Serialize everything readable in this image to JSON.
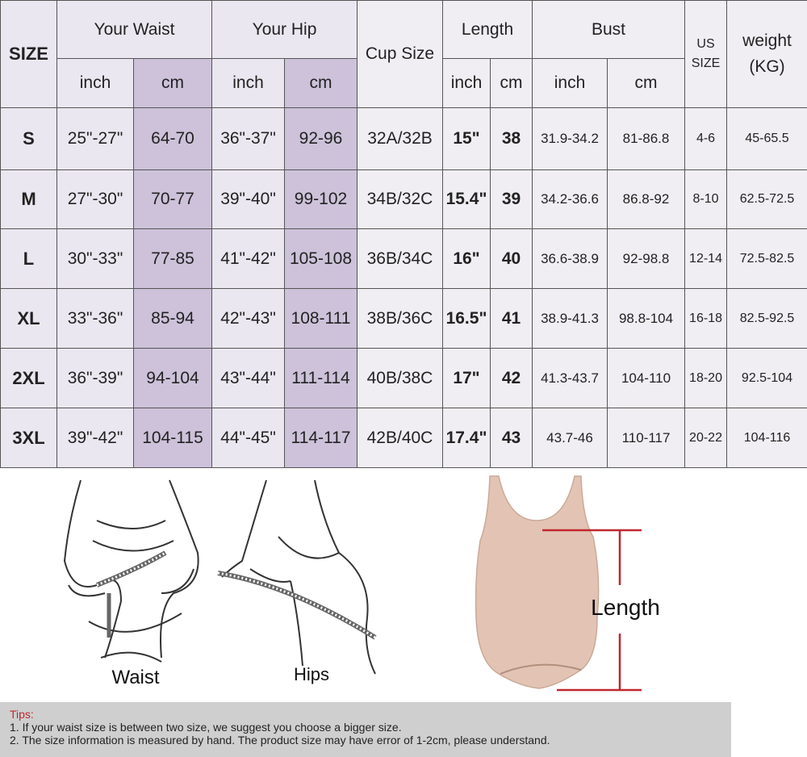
{
  "table": {
    "header": {
      "size": "SIZE",
      "waist": "Your Waist",
      "hip": "Your Hip",
      "cup": "Cup Size",
      "length": "Length",
      "bust": "Bust",
      "us_size": "US SIZE",
      "weight": "weight (KG)",
      "inch": "inch",
      "cm": "cm"
    },
    "rows": [
      [
        "S",
        "25\"-27\"",
        "64-70",
        "36\"-37\"",
        "92-96",
        "32A/32B",
        "15\"",
        "38",
        "31.9-34.2",
        "81-86.8",
        "4-6",
        "45-65.5"
      ],
      [
        "M",
        "27\"-30\"",
        "70-77",
        "39\"-40\"",
        "99-102",
        "34B/32C",
        "15.4\"",
        "39",
        "34.2-36.6",
        "86.8-92",
        "8-10",
        "62.5-72.5"
      ],
      [
        "L",
        "30\"-33\"",
        "77-85",
        "41\"-42\"",
        "105-108",
        "36B/34C",
        "16\"",
        "40",
        "36.6-38.9",
        "92-98.8",
        "12-14",
        "72.5-82.5"
      ],
      [
        "XL",
        "33\"-36\"",
        "85-94",
        "42\"-43\"",
        "108-111",
        "38B/36C",
        "16.5\"",
        "41",
        "38.9-41.3",
        "98.8-104",
        "16-18",
        "82.5-92.5"
      ],
      [
        "2XL",
        "36\"-39\"",
        "94-104",
        "43\"-44\"",
        "111-114",
        "40B/38C",
        "17\"",
        "42",
        "41.3-43.7",
        "104-110",
        "18-20",
        "92.5-104"
      ],
      [
        "3XL",
        "39\"-42\"",
        "104-115",
        "44\"-45\"",
        "114-117",
        "42B/40C",
        "17.4\"",
        "43",
        "43.7-46",
        "110-117",
        "20-22",
        "104-116"
      ]
    ]
  },
  "illustrations": {
    "waist_label": "Waist",
    "hips_label": "Hips",
    "length_label": "Length",
    "line_color": "#c0272d",
    "garment_color": "#e3c4b4"
  },
  "tips": {
    "title": "Tips:",
    "items": [
      "1. If your waist size is between two size, we suggest you choose a bigger size.",
      "2. The size information is measured by hand. The product size may have error of 1-2cm, please understand."
    ]
  }
}
